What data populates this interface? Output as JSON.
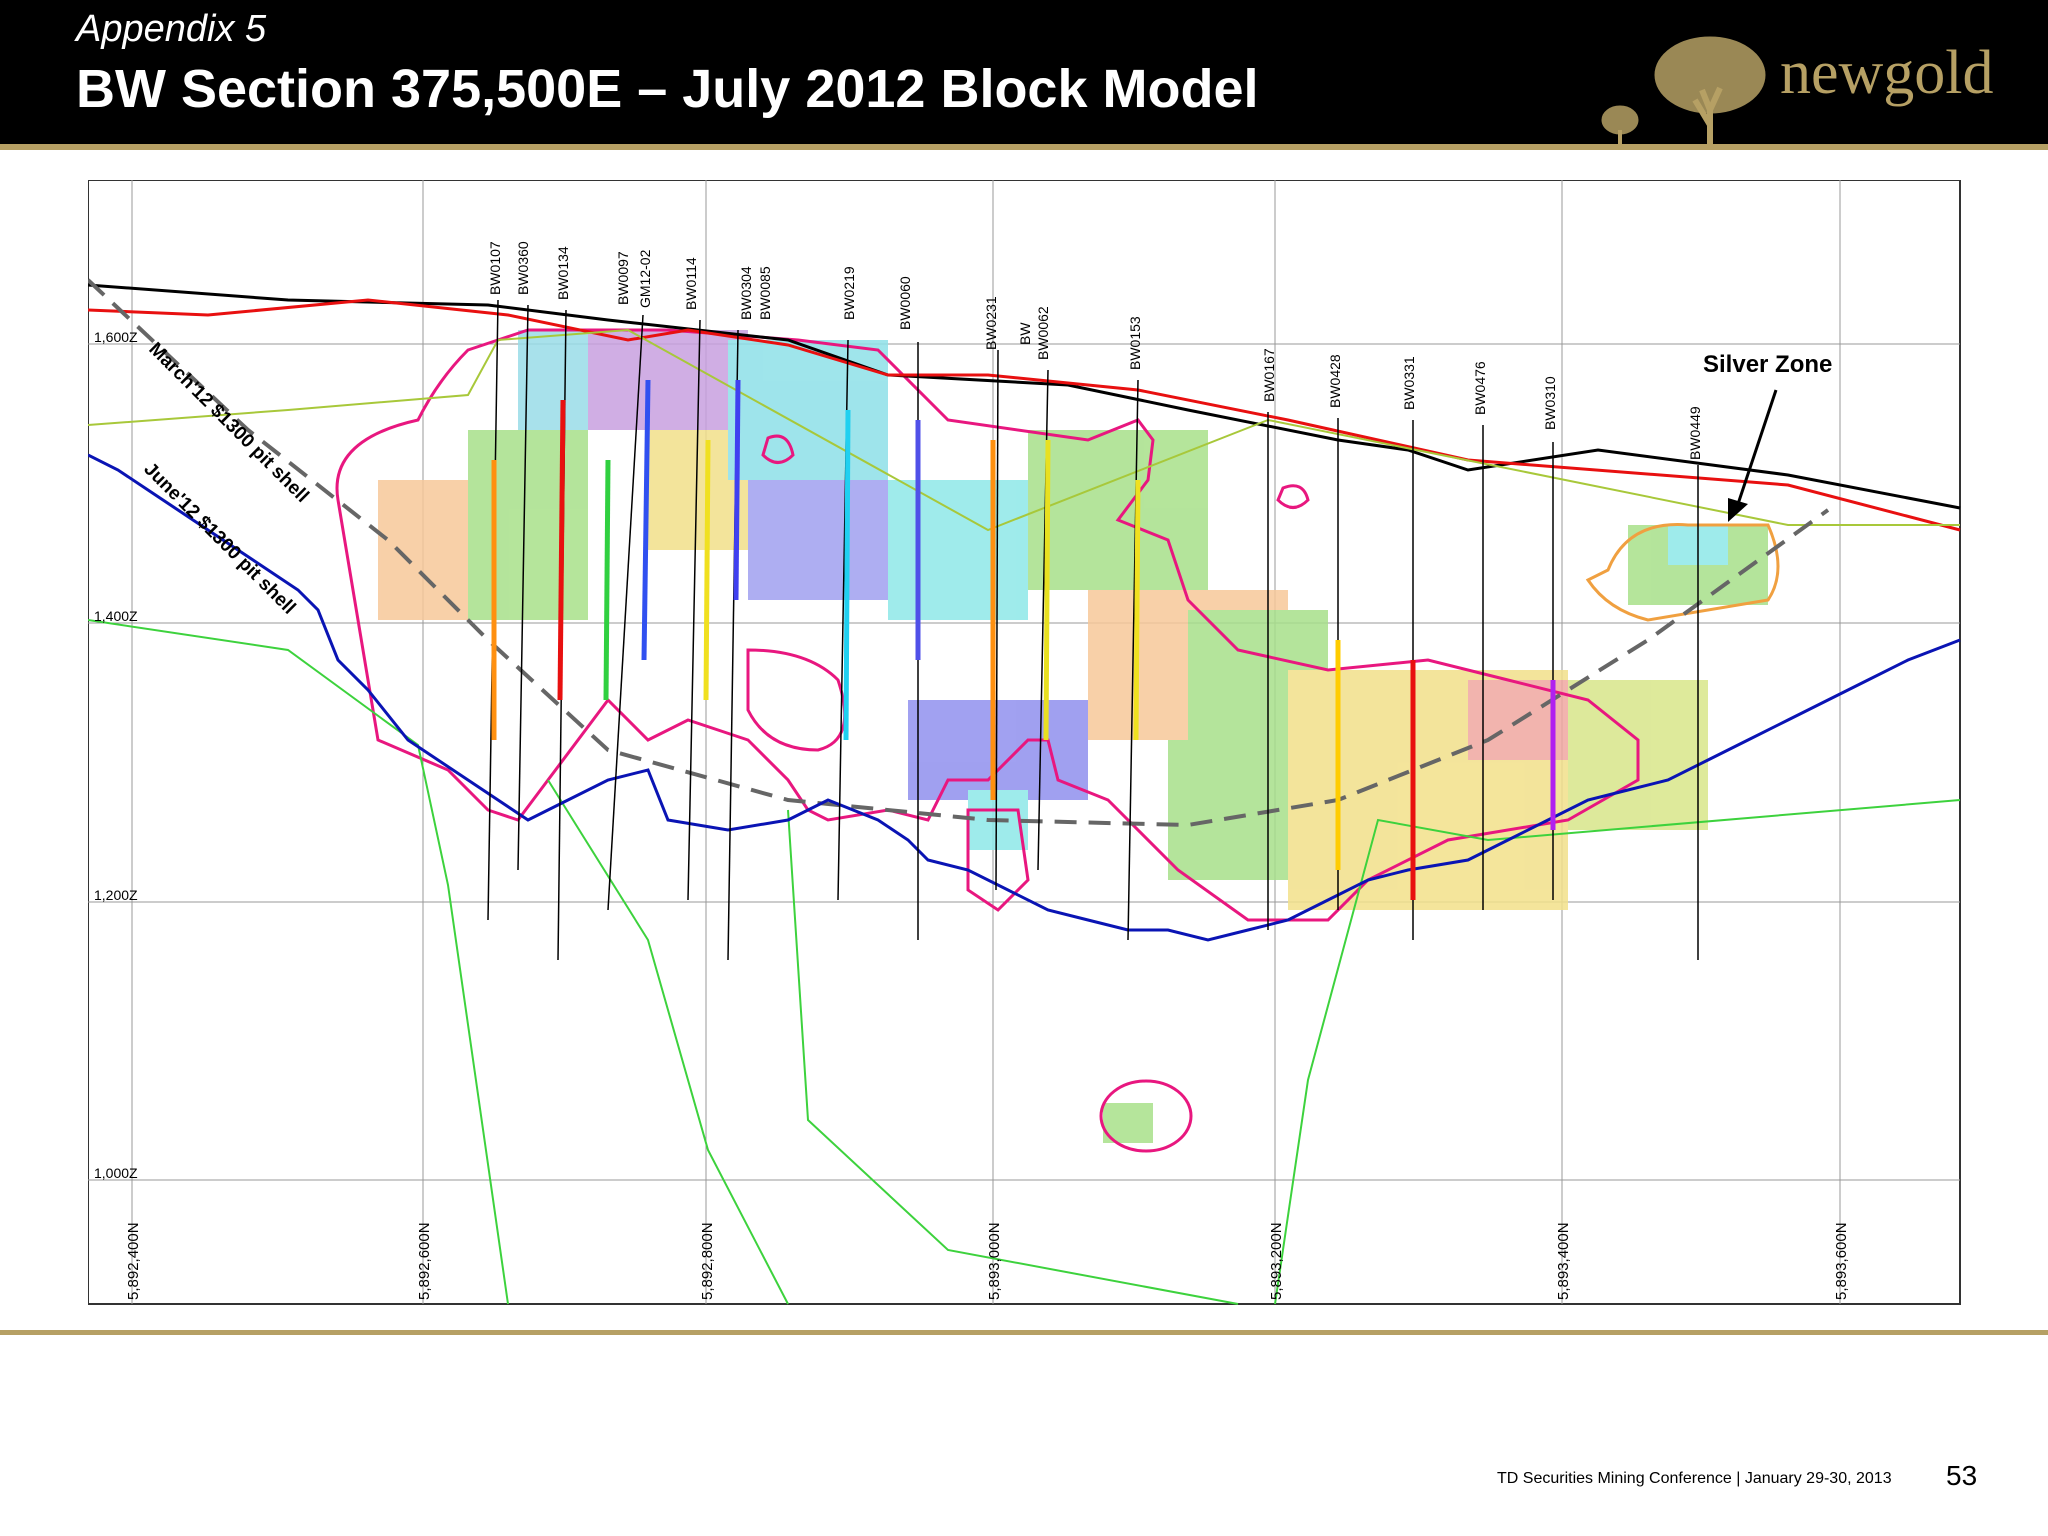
{
  "header": {
    "appendix": "Appendix 5",
    "title": "BW Section 375,500E – July 2012 Block Model",
    "logo_text": "newgold",
    "logo_icon": "tree-icon"
  },
  "section": {
    "elevation_labels": [
      "1,600Z",
      "1,400Z",
      "1,200Z",
      "1,000Z"
    ],
    "northing_labels": [
      "5,892,400N",
      "5,892,600N",
      "5,892,800N",
      "5,893,000N",
      "5,893,200N",
      "5,893,400N",
      "5,893,600N"
    ],
    "drillholes": [
      "BW0107",
      "BW0360",
      "BW0134",
      "BW0097",
      "GM12-02",
      "BW0114",
      "BW0304",
      "BW0085",
      "BW0219",
      "BW0060",
      "BW0231",
      "BW",
      "BW0062",
      "BW0153",
      "BW0167",
      "BW0428",
      "BW0331",
      "BW0476",
      "BW0310",
      "BW0449"
    ],
    "annotations": {
      "march_shell": "March'12 $1300 pit shell",
      "june_shell": "June'12 $1300 pit shell",
      "silver_zone": "Silver Zone"
    },
    "colors": {
      "march_shell": "#666666",
      "june_shell": "#0a14b4",
      "block_outline": "#e8177f",
      "topography": "#000000",
      "red_surface": "#e81010",
      "green_lines": "#3dd23d",
      "silver_outline": "#f0a040"
    }
  },
  "footer": {
    "conference": "TD Securities Mining Conference  |  January 29-30, 2013",
    "page": "53"
  }
}
